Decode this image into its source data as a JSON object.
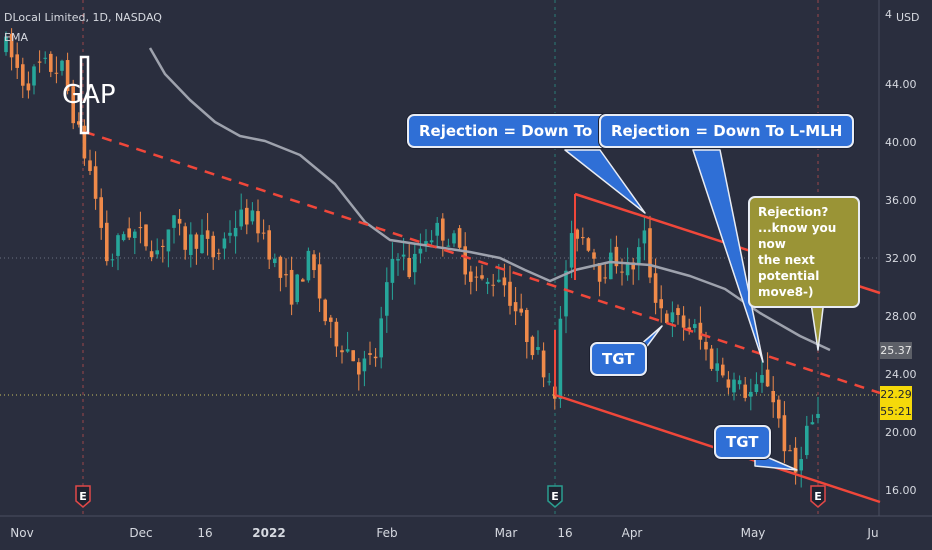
{
  "header": {
    "symbol_line": "DLocal Limited, 1D, NASDAQ",
    "indicator": "EMA"
  },
  "annotations": {
    "gap_label": "GAP",
    "callout_rejection_cl": "Rejection = Down To CL",
    "callout_rejection_lmlh": "Rejection = Down To L-MLH",
    "callout_tgt_1": "TGT",
    "callout_tgt_2": "TGT",
    "callout_question_lines": [
      "Rejection?",
      "...know you now",
      "the next potential",
      "move8-)"
    ]
  },
  "price_tags": {
    "ema_value": "25.37",
    "last_price": "22.29",
    "countdown": "55:21"
  },
  "colors": {
    "background": "#2a2e3e",
    "up_candle": "#26a69a",
    "down_candle": "#ef8a4a",
    "ema_line": "#9ea2ad",
    "channel_line": "#f0473a",
    "callout_blue": "#2f6fd6",
    "callout_olive": "#9a9436",
    "earnings_marker": "#e04848",
    "dividend_marker": "#2a9d8f"
  },
  "chart_data": {
    "type": "candlestick",
    "axis_currency": "USD",
    "y_ticks": [
      4,
      44.0,
      40.0,
      36.0,
      32.0,
      28.0,
      24.0,
      20.0,
      16.0
    ],
    "y_tick_labels": [
      "4",
      "44.00",
      "40.00",
      "36.00",
      "32.00",
      "28.00",
      "24.00",
      "20.00",
      "16.00"
    ],
    "x_tick_labels": [
      "Nov",
      "Dec",
      "16",
      "2022",
      "Feb",
      "Mar",
      "16",
      "Apr",
      "May",
      "Ju"
    ],
    "ylim": [
      13.5,
      48.5
    ],
    "grid": false,
    "event_markers": [
      {
        "label": "E",
        "type": "earnings"
      },
      {
        "label": "E",
        "type": "dividend"
      },
      {
        "label": "E",
        "type": "earnings"
      }
    ]
  }
}
